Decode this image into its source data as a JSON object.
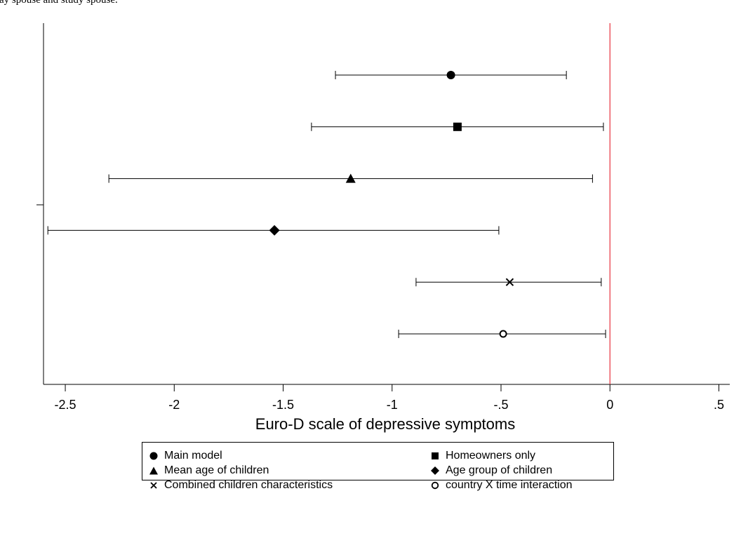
{
  "caption": "ay spouse and study spouse.",
  "chart_data": {
    "type": "scatter",
    "title": "",
    "xlabel": "Euro-D scale of depressive symptoms",
    "ylabel": "",
    "xlim": [
      -2.6,
      0.55
    ],
    "xticks": [
      -2.5,
      -2,
      -1.5,
      -1,
      -0.5,
      0,
      0.5
    ],
    "xtick_labels": [
      "-2.5",
      "-2",
      "-1.5",
      "-1",
      "-.5",
      "0",
      ".5"
    ],
    "reference_line": {
      "x": 0,
      "color": "#e8323c"
    },
    "grid": false,
    "legend_position": "bottom",
    "series": [
      {
        "name": "Main model",
        "marker": "circle",
        "estimate": -0.73,
        "ci": [
          -1.26,
          -0.2
        ]
      },
      {
        "name": "Homeowners only",
        "marker": "square",
        "estimate": -0.7,
        "ci": [
          -1.37,
          -0.03
        ]
      },
      {
        "name": "Mean age of children",
        "marker": "triangle",
        "estimate": -1.19,
        "ci": [
          -2.3,
          -0.08
        ]
      },
      {
        "name": "Age group of children",
        "marker": "diamond",
        "estimate": -1.54,
        "ci": [
          -2.58,
          -0.51
        ]
      },
      {
        "name": "Combined children characteristics",
        "marker": "x",
        "estimate": -0.46,
        "ci": [
          -0.89,
          -0.04
        ]
      },
      {
        "name": "country X time interaction",
        "marker": "hollow-circle",
        "estimate": -0.49,
        "ci": [
          -0.97,
          -0.02
        ]
      }
    ]
  },
  "legend": {
    "rows": [
      [
        "Main model",
        "Homeowners only"
      ],
      [
        "Mean age of children",
        "Age group of children"
      ],
      [
        "Combined children characteristics",
        "country X time interaction"
      ]
    ]
  }
}
